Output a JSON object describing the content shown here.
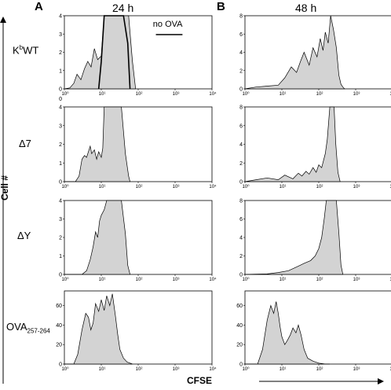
{
  "figure": {
    "panel_a": "A",
    "panel_b": "B",
    "time_a": "24 h",
    "time_b": "48 h",
    "y_axis_label": "Cell #",
    "x_axis_label": "CFSE",
    "origin_label": "0"
  },
  "rows": [
    {
      "main": "K",
      "sup": "b",
      "rest": "WT",
      "sub": ""
    },
    {
      "main": "Δ7",
      "sup": "",
      "rest": "",
      "sub": ""
    },
    {
      "main": "ΔY",
      "sup": "",
      "rest": "",
      "sub": ""
    },
    {
      "main": "OVA",
      "sup": "",
      "rest": "",
      "sub": "257-264"
    }
  ],
  "annotation": "no OVA",
  "colors": {
    "fill": "#d3d3d3",
    "stroke": "#000000",
    "overlay": "#000000"
  },
  "x_tick_labels": [
    "10⁰",
    "10¹",
    "10²",
    "10³",
    "10⁴"
  ],
  "chart_data": [
    {
      "type": "area",
      "panel": "A",
      "row": "KbWT",
      "xlabel": "CFSE",
      "ylabel": "Cell #",
      "xscale": "log",
      "xlim": [
        1,
        10000
      ],
      "ylim": [
        0,
        4
      ],
      "yticks": [
        0,
        1,
        2,
        3,
        4
      ],
      "x": [
        1,
        1.4,
        1.8,
        2.2,
        2.8,
        3.5,
        4.3,
        5.3,
        6.5,
        8,
        10,
        12,
        14,
        17,
        20,
        25,
        30,
        40,
        55,
        70,
        85
      ],
      "values": [
        0,
        0.05,
        0.3,
        0.8,
        0.5,
        1.1,
        1.5,
        1.2,
        2.2,
        1.6,
        1.8,
        4,
        4,
        4,
        4,
        4,
        4,
        4,
        4,
        1.5,
        0
      ],
      "overlay_series": {
        "name": "no OVA",
        "x": [
          8.5,
          10,
          12,
          14,
          20,
          30,
          40,
          52,
          60
        ],
        "values": [
          0,
          1.5,
          4,
          4,
          4,
          4,
          4,
          2.5,
          0
        ]
      }
    },
    {
      "type": "area",
      "panel": "A",
      "row": "Δ7",
      "xscale": "log",
      "xlim": [
        1,
        10000
      ],
      "ylim": [
        0,
        4
      ],
      "yticks": [
        0,
        1,
        2,
        3,
        4
      ],
      "x": [
        1,
        2,
        2.5,
        3,
        3.5,
        4,
        5,
        5.5,
        6.5,
        7.5,
        8.5,
        10,
        11,
        12,
        14,
        18,
        25,
        35,
        45,
        55,
        60
      ],
      "values": [
        0,
        0,
        0.3,
        1.2,
        1.4,
        1.3,
        1.9,
        1.5,
        1.7,
        1.2,
        1.6,
        1.3,
        1.8,
        4,
        4,
        4,
        4,
        4,
        1.5,
        0.3,
        0
      ]
    },
    {
      "type": "area",
      "panel": "A",
      "row": "ΔY",
      "xscale": "log",
      "xlim": [
        1,
        10000
      ],
      "ylim": [
        0,
        4
      ],
      "yticks": [
        0,
        1,
        2,
        3,
        4
      ],
      "x": [
        1,
        3,
        4,
        5,
        6,
        7,
        8,
        9,
        10,
        12,
        14,
        18,
        25,
        35,
        45,
        52,
        60
      ],
      "values": [
        0,
        0,
        0.2,
        0.8,
        1.5,
        2.3,
        2,
        2.9,
        3.2,
        3.5,
        4,
        4,
        4,
        4,
        2.2,
        0.5,
        0
      ]
    },
    {
      "type": "area",
      "panel": "A",
      "row": "OVA257-264",
      "xscale": "log",
      "xlim": [
        1,
        10000
      ],
      "ylim": [
        0,
        75
      ],
      "yticks": [
        0,
        20,
        40,
        60
      ],
      "x": [
        1,
        1.8,
        2.3,
        3,
        3.8,
        4.5,
        5.2,
        6,
        7,
        8.5,
        10,
        12,
        14,
        17,
        20,
        24,
        28,
        32,
        40,
        50,
        60,
        70
      ],
      "values": [
        0,
        0,
        10,
        35,
        52,
        48,
        35,
        42,
        62,
        54,
        66,
        55,
        70,
        60,
        72,
        50,
        30,
        15,
        6,
        2,
        1,
        0
      ]
    },
    {
      "type": "area",
      "panel": "B",
      "row": "KbWT",
      "xscale": "log",
      "xlim": [
        1,
        10000
      ],
      "ylim": [
        0,
        8
      ],
      "yticks": [
        0,
        2,
        4,
        6,
        8
      ],
      "x": [
        1,
        2,
        4,
        8,
        12,
        18,
        25,
        32,
        40,
        55,
        70,
        90,
        110,
        130,
        150,
        180,
        210,
        250,
        300,
        350,
        400,
        450,
        500
      ],
      "values": [
        0,
        0.2,
        0.3,
        0.4,
        1.2,
        2.4,
        1.8,
        3,
        4,
        2.6,
        4.5,
        3.5,
        5.5,
        4.2,
        6.2,
        5,
        8,
        6.5,
        4.5,
        1.5,
        0.5,
        0.2,
        0
      ]
    },
    {
      "type": "area",
      "panel": "B",
      "row": "Δ7",
      "xscale": "log",
      "xlim": [
        1,
        10000
      ],
      "ylim": [
        0,
        8
      ],
      "yticks": [
        0,
        2,
        4,
        6,
        8
      ],
      "x": [
        1,
        2,
        4,
        8,
        12,
        20,
        28,
        35,
        45,
        55,
        70,
        85,
        100,
        120,
        150,
        170,
        200,
        230,
        260,
        290,
        330,
        380
      ],
      "values": [
        0,
        0.2,
        0.4,
        0.2,
        0.7,
        0.3,
        0.9,
        0.6,
        1.1,
        0.8,
        1.5,
        1,
        1.8,
        1.5,
        3,
        4.5,
        8,
        8,
        8,
        4,
        1,
        0
      ]
    },
    {
      "type": "area",
      "panel": "B",
      "row": "ΔY",
      "xscale": "log",
      "xlim": [
        1,
        10000
      ],
      "ylim": [
        0,
        8
      ],
      "yticks": [
        0,
        2,
        4,
        6,
        8
      ],
      "x": [
        1,
        4,
        8,
        15,
        25,
        40,
        60,
        80,
        100,
        120,
        140,
        160,
        180,
        200,
        250,
        300,
        350,
        400,
        450
      ],
      "values": [
        0,
        0.05,
        0.2,
        0.4,
        0.8,
        1.2,
        1.5,
        2,
        2.8,
        4,
        6,
        8,
        8,
        8,
        8,
        8,
        4.5,
        1,
        0
      ]
    },
    {
      "type": "area",
      "panel": "B",
      "row": "OVA257-264",
      "xscale": "log",
      "xlim": [
        1,
        10000
      ],
      "ylim": [
        0,
        75
      ],
      "yticks": [
        0,
        20,
        40,
        60
      ],
      "x": [
        1,
        2.2,
        3,
        4,
        5,
        6,
        7,
        8,
        9,
        10,
        12,
        14,
        17,
        20,
        24,
        28,
        33,
        40,
        50,
        70,
        100,
        150,
        200
      ],
      "values": [
        0,
        0,
        15,
        45,
        60,
        52,
        64,
        52,
        38,
        28,
        20,
        24,
        30,
        37,
        32,
        40,
        30,
        15,
        6,
        3,
        1,
        0,
        0
      ]
    }
  ]
}
